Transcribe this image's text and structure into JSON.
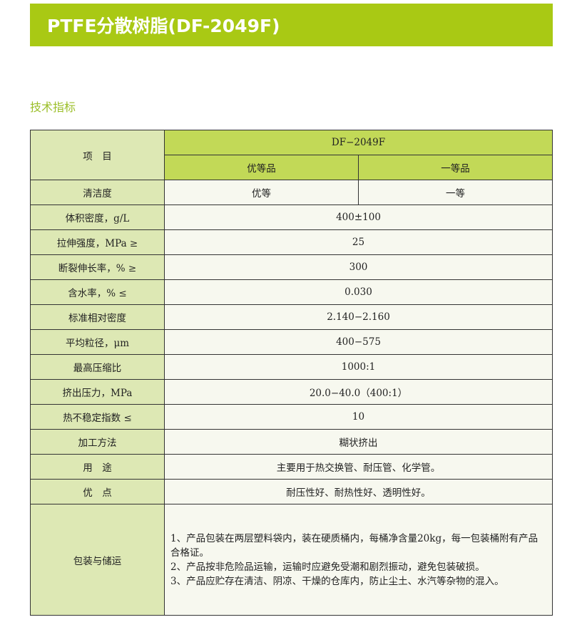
{
  "title": "PTFE分散树脂(DF-2049F)",
  "section_heading": "技术指标",
  "colors": {
    "title_bar": "#a9c914",
    "header": "#c2d957",
    "label_col": "#dde8b4",
    "cell": "#f7f8ef"
  },
  "table": {
    "item_header": "项　目",
    "model": "DF−2049F",
    "grades": [
      "优等品",
      "一等品"
    ],
    "cleanliness": {
      "label": "清洁度",
      "values": [
        "优等",
        "一等"
      ]
    },
    "rows": [
      {
        "label": "体积密度，g/L",
        "value": "400±100"
      },
      {
        "label": "拉伸强度，MPa ≥",
        "value": "25"
      },
      {
        "label": "断裂伸长率，% ≥",
        "value": "300"
      },
      {
        "label": "含水率，% ≤",
        "value": "0.030"
      },
      {
        "label": "标准相对密度",
        "value": "2.140−2.160"
      },
      {
        "label": "平均粒径，μm",
        "value": "400−575"
      },
      {
        "label": "最高压缩比",
        "value": "1000:1"
      },
      {
        "label": "挤出压力，MPa",
        "value": "20.0−40.0（400:1）"
      },
      {
        "label": "热不稳定指数 ≤",
        "value": "10"
      },
      {
        "label": "加工方法",
        "value": "糊状挤出"
      },
      {
        "label": "用　途",
        "value": "主要用于热交换管、耐压管、化学管。"
      },
      {
        "label": "优　点",
        "value": "耐压性好、耐热性好、透明性好。"
      }
    ],
    "packaging": {
      "label": "包装与储运",
      "lines": [
        "1、产品包装在两层塑料袋内，装在硬质桶内，每桶净含量20kg，每一包装桶附有产品合格证。",
        "2、产品按非危险品运输，运输时应避免受潮和剧烈振动，避免包装破损。",
        "3、产品应贮存在清洁、阴凉、干燥的仓库内，防止尘土、水汽等杂物的混入。"
      ]
    }
  }
}
